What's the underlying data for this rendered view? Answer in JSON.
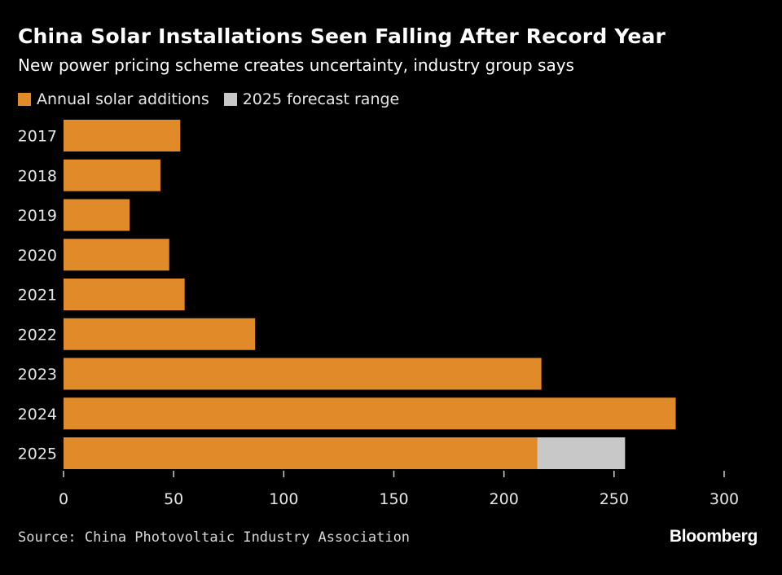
{
  "chart_data": {
    "type": "bar",
    "orientation": "horizontal",
    "stacked": true,
    "title": "China Solar Installations Seen Falling After Record Year",
    "subtitle": "New power pricing scheme creates uncertainty, industry group says",
    "categories": [
      "2017",
      "2018",
      "2019",
      "2020",
      "2021",
      "2022",
      "2023",
      "2024",
      "2025"
    ],
    "series": [
      {
        "name": "Annual solar additions",
        "color": "#e08a2a",
        "values": [
          53,
          44,
          30,
          48,
          55,
          87,
          217,
          278,
          215
        ]
      },
      {
        "name": "2025 forecast range",
        "color": "#c8c8c8",
        "values": [
          0,
          0,
          0,
          0,
          0,
          0,
          0,
          0,
          40
        ]
      }
    ],
    "xlim": [
      0,
      300
    ],
    "xticks": [
      "0",
      "50",
      "100",
      "150",
      "200",
      "250",
      "300"
    ],
    "xlabel": "",
    "ylabel": "",
    "grid": false,
    "legend_placement": "top-left"
  },
  "footer": {
    "source": "Source: China Photovoltaic Industry Association",
    "logo": "Bloomberg"
  }
}
